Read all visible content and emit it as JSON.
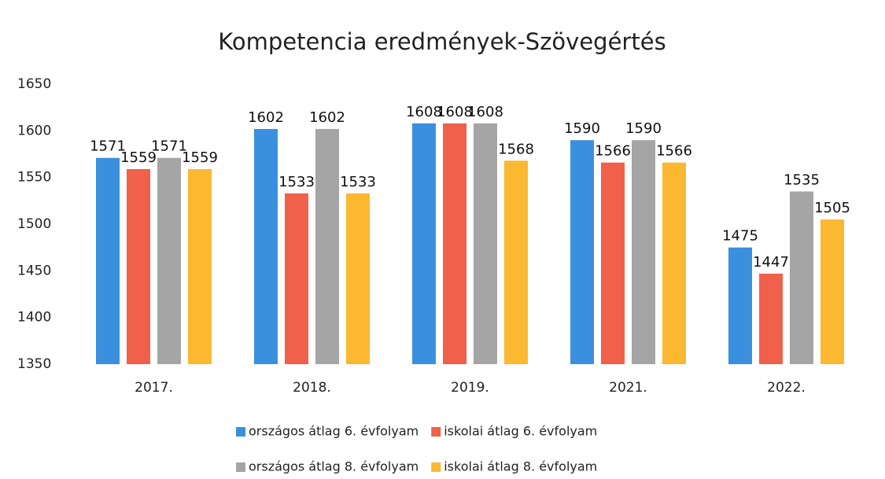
{
  "chart_data": {
    "type": "bar",
    "title": "Kompetencia eredmények-Szövegértés",
    "categories": [
      "2017.",
      "2018.",
      "2019.",
      "2021.",
      "2022."
    ],
    "series": [
      {
        "name": "országos átlag 6. évfolyam",
        "color": "#3b8fdf",
        "values": [
          1571,
          1602,
          1608,
          1590,
          1475
        ]
      },
      {
        "name": "iskolai átlag 6. évfolyam",
        "color": "#f0604a",
        "values": [
          1559,
          1533,
          1608,
          1566,
          1447
        ]
      },
      {
        "name": "országos átlag 8. évfolyam",
        "color": "#a5a5a5",
        "values": [
          1571,
          1602,
          1608,
          1590,
          1535
        ]
      },
      {
        "name": "iskolai átlag 8. évfolyam",
        "color": "#fbb830",
        "values": [
          1559,
          1533,
          1568,
          1566,
          1505
        ]
      }
    ],
    "ylim": [
      1350,
      1650
    ],
    "yticks": [
      1350,
      1400,
      1450,
      1500,
      1550,
      1600,
      1650
    ],
    "grid": false,
    "legend": "bottom"
  }
}
